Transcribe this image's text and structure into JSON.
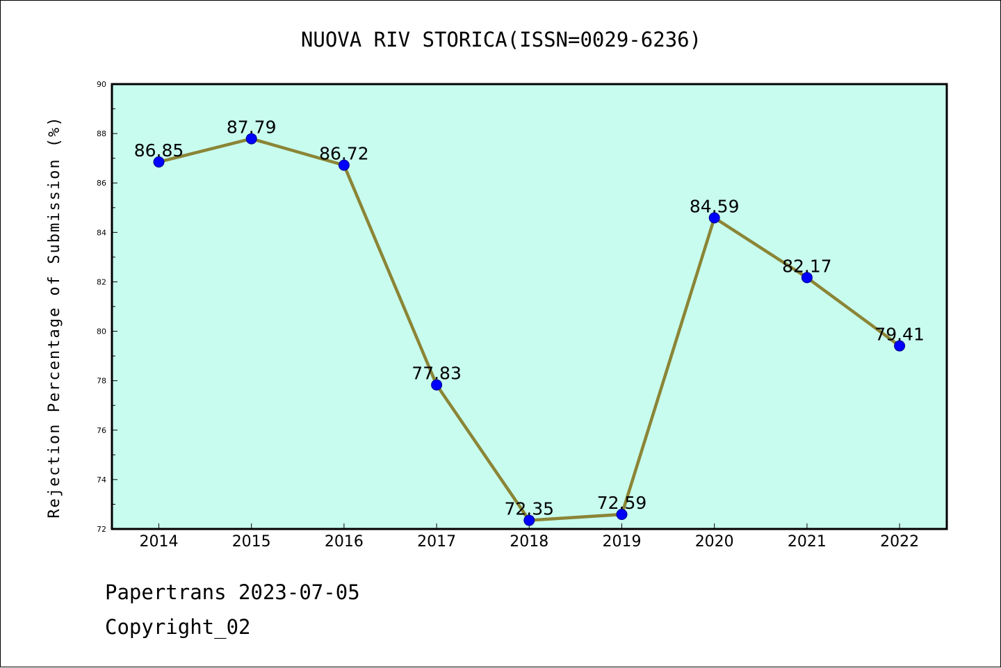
{
  "chart_data": {
    "type": "line",
    "title": "NUOVA RIV STORICA(ISSN=0029-6236)",
    "xlabel": "",
    "ylabel": "Rejection Percentage of Submission (%)",
    "categories": [
      "2014",
      "2015",
      "2016",
      "2017",
      "2018",
      "2019",
      "2020",
      "2021",
      "2022"
    ],
    "series": [
      {
        "values": [
          86.85,
          87.79,
          86.72,
          77.83,
          72.35,
          72.59,
          84.59,
          82.17,
          79.41
        ],
        "labels": [
          "86.85",
          "87.79",
          "86.72",
          "77.83",
          "72.35",
          "72.59",
          "84.59",
          "82.17",
          "79.41"
        ]
      }
    ],
    "ylim": [
      72,
      90
    ],
    "yticks": [
      72,
      74,
      76,
      78,
      80,
      82,
      84,
      86,
      88,
      90
    ],
    "ytick_labels": [
      "72",
      "74",
      "76",
      "78",
      "80",
      "82",
      "84",
      "86",
      "88",
      "90"
    ],
    "grid": false,
    "colors": {
      "plot_background": "#c8fcee",
      "line": "#8b8536",
      "marker": "#0000ff"
    }
  },
  "footer": {
    "line1": "Papertrans 2023-07-05",
    "line2": "Copyright_02"
  }
}
